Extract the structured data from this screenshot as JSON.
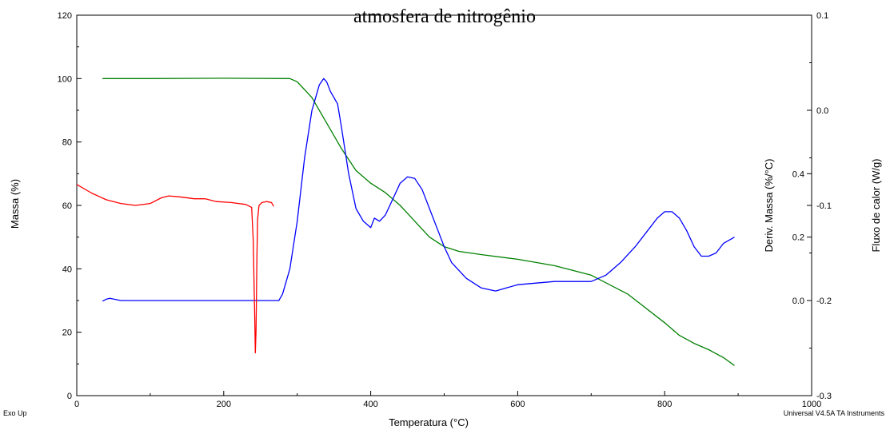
{
  "chart_data": {
    "type": "line",
    "title": "atmosfera de nitrogênio",
    "xlabel": "Temperatura (°C)",
    "xlim": [
      0,
      1000
    ],
    "x_ticks": [
      0,
      200,
      400,
      600,
      800,
      1000
    ],
    "y_left": {
      "label": "Massa (%)",
      "lim": [
        0,
        120
      ],
      "ticks": [
        0,
        20,
        40,
        60,
        80,
        100,
        120
      ]
    },
    "y_deriv": {
      "label": "Deriv. Massa (%/°C)",
      "lim": [
        -0.3,
        0.9
      ],
      "ticks": [
        0.0,
        0.2,
        0.4
      ],
      "tick_labels": [
        "0.0",
        "0.2",
        "0.4"
      ]
    },
    "y_heat": {
      "label": "Fluxo de calor (W/g)",
      "lim": [
        -0.3,
        0.1
      ],
      "ticks": [
        -0.3,
        -0.2,
        -0.1,
        0.0,
        0.1
      ],
      "tick_labels": [
        "-0.3",
        "-0.2",
        "-0.1",
        "0.0",
        "0.1"
      ]
    },
    "grid": false,
    "legend": "none",
    "series": [
      {
        "axis": "left",
        "color": "#008000",
        "x": [
          35,
          100,
          200,
          290,
          300,
          320,
          340,
          360,
          380,
          400,
          420,
          440,
          460,
          480,
          500,
          520,
          550,
          600,
          650,
          700,
          750,
          800,
          820,
          840,
          860,
          880,
          895
        ],
        "y": [
          100,
          100,
          100.1,
          100,
          99,
          94,
          86,
          78,
          71,
          67,
          64,
          60,
          55,
          50,
          47,
          45.5,
          44.5,
          43,
          41,
          38,
          32,
          23,
          19,
          16.5,
          14.5,
          12,
          9.5
        ]
      },
      {
        "axis": "deriv",
        "color": "#0000ff",
        "x": [
          35,
          40,
          45,
          60,
          100,
          200,
          260,
          275,
          280,
          290,
          300,
          310,
          320,
          330,
          336,
          340,
          345,
          350,
          355,
          360,
          370,
          380,
          390,
          400,
          405,
          412,
          420,
          430,
          440,
          450,
          460,
          470,
          480,
          490,
          500,
          510,
          530,
          550,
          570,
          600,
          650,
          700,
          720,
          740,
          760,
          780,
          790,
          800,
          810,
          820,
          830,
          840,
          850,
          860,
          870,
          880,
          895
        ],
        "y": [
          -0.002,
          0.004,
          0.007,
          0.0,
          -0.0001,
          0.0,
          0.0,
          0.0,
          0.02,
          0.1,
          0.25,
          0.45,
          0.6,
          0.68,
          0.7,
          0.69,
          0.66,
          0.64,
          0.62,
          0.55,
          0.4,
          0.29,
          0.25,
          0.23,
          0.26,
          0.25,
          0.27,
          0.32,
          0.37,
          0.39,
          0.385,
          0.35,
          0.29,
          0.23,
          0.17,
          0.12,
          0.07,
          0.04,
          0.03,
          0.05,
          0.06,
          0.06,
          0.08,
          0.12,
          0.17,
          0.23,
          0.26,
          0.28,
          0.28,
          0.26,
          0.22,
          0.17,
          0.14,
          0.14,
          0.15,
          0.18,
          0.2
        ]
      },
      {
        "axis": "heat",
        "color": "#ff0000",
        "x": [
          0,
          20,
          40,
          60,
          80,
          100,
          115,
          125,
          140,
          160,
          175,
          190,
          210,
          230,
          238,
          240,
          242,
          243,
          244,
          245,
          246,
          248,
          252,
          258,
          265,
          268
        ],
        "y": [
          -0.078,
          -0.087,
          -0.094,
          -0.098,
          -0.1,
          -0.098,
          -0.092,
          -0.09,
          -0.091,
          -0.093,
          -0.093,
          -0.096,
          -0.097,
          -0.099,
          -0.102,
          -0.135,
          -0.21,
          -0.255,
          -0.232,
          -0.16,
          -0.115,
          -0.1,
          -0.097,
          -0.096,
          -0.097,
          -0.101
        ]
      }
    ]
  },
  "notes": {
    "exo": "Exo Up",
    "software": "Universal V4.5A TA Instruments"
  }
}
